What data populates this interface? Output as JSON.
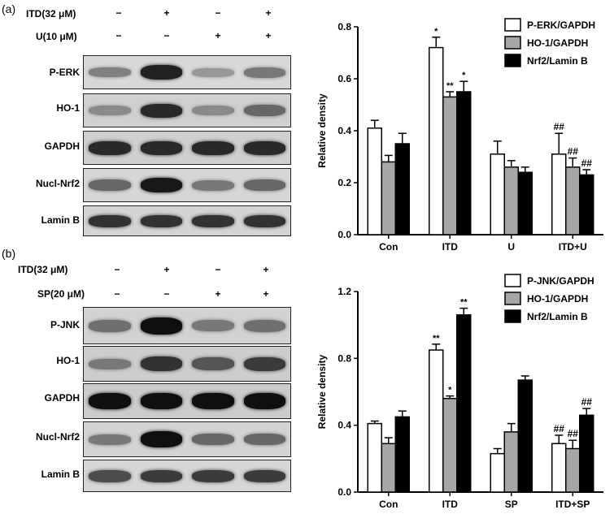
{
  "panels": [
    {
      "label": "(a)",
      "treatments": [
        {
          "name": "ITD(32 μM)",
          "signs": [
            "−",
            "+",
            "−",
            "+"
          ]
        },
        {
          "name": "U(10 μM)",
          "signs": [
            "−",
            "−",
            "+",
            "+"
          ]
        }
      ],
      "blots": [
        {
          "label": "P-ERK",
          "levels": [
            0.35,
            0.9,
            0.22,
            0.4
          ]
        },
        {
          "label": "HO-1",
          "levels": [
            0.3,
            0.85,
            0.3,
            0.5
          ]
        },
        {
          "label": "GAPDH",
          "levels": [
            0.85,
            0.85,
            0.85,
            0.85
          ]
        },
        {
          "label": "Nucl-Nrf2",
          "levels": [
            0.5,
            0.95,
            0.4,
            0.5
          ]
        },
        {
          "label": "Lamin B",
          "levels": [
            0.8,
            0.8,
            0.8,
            0.8
          ]
        }
      ]
    },
    {
      "label": "(b)",
      "treatments": [
        {
          "name": "ITD(32 μM)",
          "signs": [
            "−",
            "+",
            "−",
            "+"
          ]
        },
        {
          "name": "SP(20 μM)",
          "signs": [
            "−",
            "−",
            "+",
            "+"
          ]
        }
      ],
      "blots": [
        {
          "label": "P-JNK",
          "levels": [
            0.45,
            1.0,
            0.4,
            0.45
          ]
        },
        {
          "label": "HO-1",
          "levels": [
            0.4,
            0.8,
            0.6,
            0.75
          ]
        },
        {
          "label": "GAPDH",
          "levels": [
            1.0,
            1.0,
            1.0,
            1.0
          ]
        },
        {
          "label": "Nucl-Nrf2",
          "levels": [
            0.4,
            1.0,
            0.5,
            0.5
          ]
        },
        {
          "label": "Lamin B",
          "levels": [
            0.65,
            0.75,
            0.75,
            0.75
          ]
        }
      ]
    }
  ],
  "chart_data": [
    {
      "type": "bar",
      "title": "",
      "xlabel": "",
      "ylabel": "Relative density",
      "ylim": [
        0,
        0.8
      ],
      "yticks": [
        "0.0",
        "0.2",
        "0.4",
        "0.6",
        "0.8"
      ],
      "categories": [
        "Con",
        "ITD",
        "U",
        "ITD+U"
      ],
      "legend_position": "top-right",
      "series": [
        {
          "name": "P-ERK/GAPDH",
          "color": "#ffffff",
          "values": [
            0.41,
            0.72,
            0.31,
            0.31
          ],
          "errors": [
            0.03,
            0.04,
            0.05,
            0.08
          ],
          "marks": [
            "",
            "*",
            "",
            "##"
          ]
        },
        {
          "name": "HO-1/GAPDH",
          "color": "#a6a6a6",
          "values": [
            0.28,
            0.53,
            0.26,
            0.26
          ],
          "errors": [
            0.025,
            0.02,
            0.025,
            0.035
          ],
          "marks": [
            "",
            "**",
            "",
            "##"
          ]
        },
        {
          "name": "Nrf2/Lamin B",
          "color": "#000000",
          "values": [
            0.35,
            0.55,
            0.24,
            0.23
          ],
          "errors": [
            0.04,
            0.04,
            0.02,
            0.02
          ],
          "marks": [
            "",
            "*",
            "",
            "##"
          ]
        }
      ]
    },
    {
      "type": "bar",
      "title": "",
      "xlabel": "",
      "ylabel": "Relative density",
      "ylim": [
        0,
        1.2
      ],
      "yticks": [
        "0.0",
        "0.4",
        "0.8",
        "1.2"
      ],
      "categories": [
        "Con",
        "ITD",
        "SP",
        "ITD+SP"
      ],
      "legend_position": "top-right",
      "series": [
        {
          "name": "P-JNK/GAPDH",
          "color": "#ffffff",
          "values": [
            0.41,
            0.85,
            0.23,
            0.29
          ],
          "errors": [
            0.015,
            0.035,
            0.03,
            0.05
          ],
          "marks": [
            "",
            "**",
            "",
            "##"
          ]
        },
        {
          "name": "HO-1/GAPDH",
          "color": "#a6a6a6",
          "values": [
            0.29,
            0.56,
            0.36,
            0.26
          ],
          "errors": [
            0.035,
            0.015,
            0.05,
            0.05
          ],
          "marks": [
            "",
            "*",
            "",
            "##"
          ]
        },
        {
          "name": "Nrf2/Lamin B",
          "color": "#000000",
          "values": [
            0.45,
            1.06,
            0.67,
            0.46
          ],
          "errors": [
            0.035,
            0.04,
            0.025,
            0.04
          ],
          "marks": [
            "",
            "**",
            "",
            "##"
          ]
        }
      ]
    }
  ]
}
